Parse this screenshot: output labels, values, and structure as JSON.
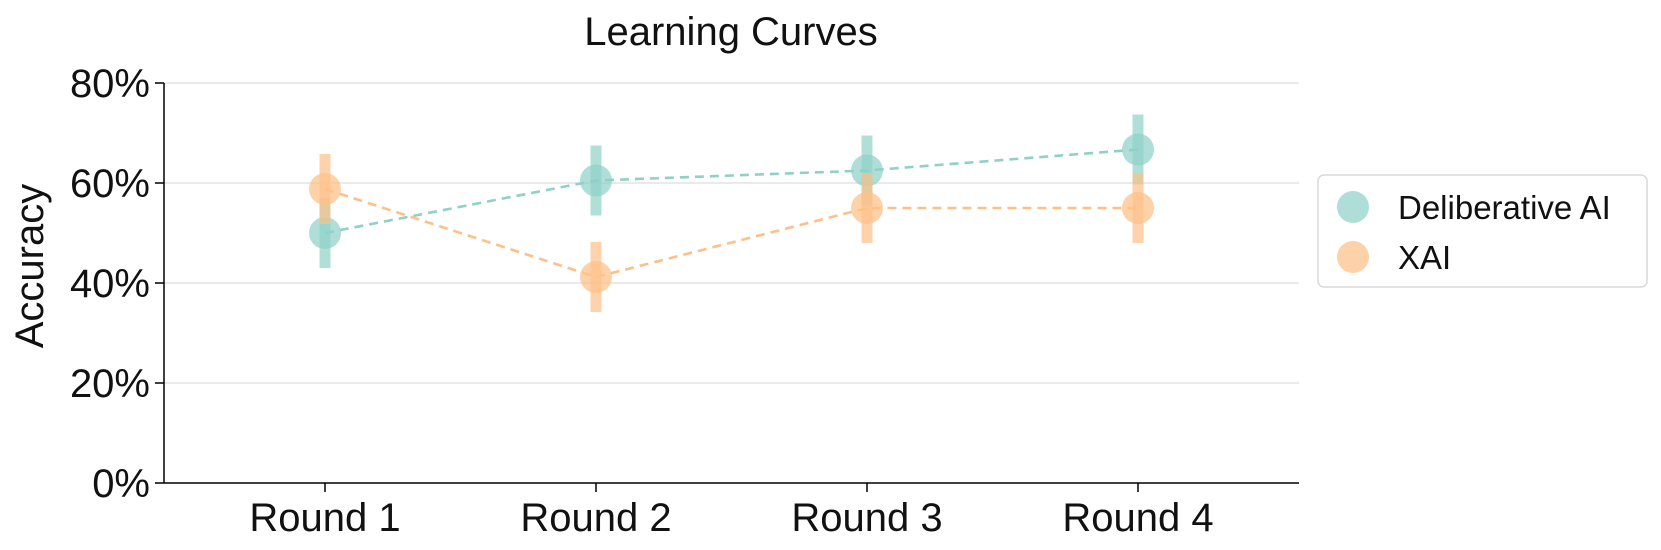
{
  "chart_data": {
    "type": "line",
    "title": "Learning Curves",
    "xlabel": "",
    "ylabel": "Accuracy",
    "categories": [
      "Round 1",
      "Round 2",
      "Round 3",
      "Round 4"
    ],
    "ylim": [
      0,
      80
    ],
    "yticks": [
      "0%",
      "20%",
      "40%",
      "60%",
      "80%"
    ],
    "grid": "horizontal",
    "legend_position": "right-outside",
    "series": [
      {
        "name": "Deliberative AI",
        "color": "#8fd1c7",
        "values": [
          50,
          60.5,
          62.5,
          66.7
        ],
        "error": [
          7,
          7,
          7,
          7
        ]
      },
      {
        "name": "XAI",
        "color": "#fdc088",
        "values": [
          58.8,
          41.2,
          55,
          55
        ],
        "error": [
          7,
          7,
          7,
          7
        ]
      }
    ]
  }
}
